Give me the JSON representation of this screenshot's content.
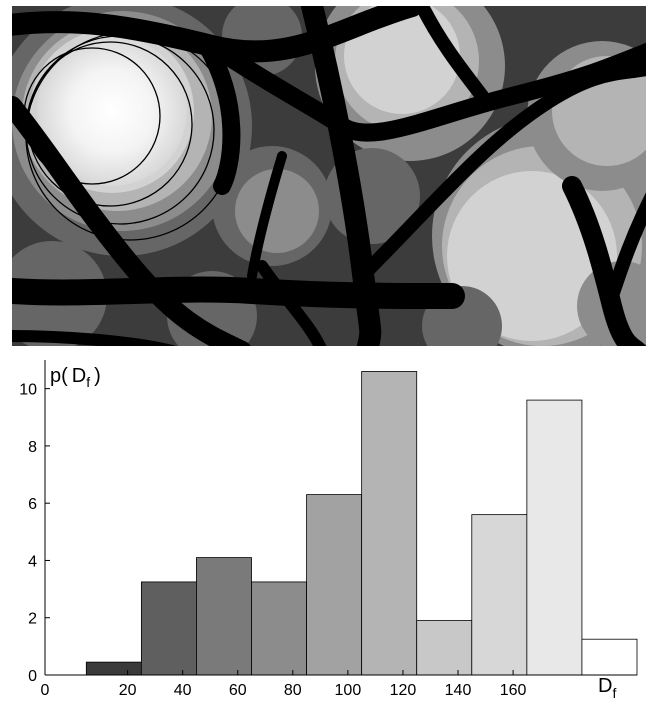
{
  "micrograph": {
    "colors": {
      "fiber": "#000000",
      "pore_level_1": "#3c3c3c",
      "pore_level_2": "#666666",
      "pore_level_3": "#8c8c8c",
      "pore_level_4": "#b4b4b4",
      "pore_level_5": "#d2d2d2",
      "largest_pore": "#ffffff",
      "probe_circle": "#000000"
    }
  },
  "chart_data": {
    "type": "bar",
    "ylabel_main": "p(",
    "ylabel_symbol": "D",
    "ylabel_subscript": "f",
    "ylabel_close": ")",
    "xlabel_symbol": "D",
    "xlabel_subscript": "f",
    "xlim": [
      0,
      175
    ],
    "ylim": [
      0,
      11
    ],
    "xticks": [
      0,
      20,
      40,
      60,
      80,
      100,
      120,
      140,
      160
    ],
    "yticks": [
      0,
      2,
      4,
      6,
      8,
      10
    ],
    "bin_width": 20,
    "bins": [
      {
        "x0": 15,
        "x1": 35,
        "value": 0.45,
        "color": "#3a3a3a"
      },
      {
        "x0": 35,
        "x1": 55,
        "value": 3.25,
        "color": "#5f5f5f"
      },
      {
        "x0": 55,
        "x1": 75,
        "value": 4.1,
        "color": "#7a7a7a"
      },
      {
        "x0": 75,
        "x1": 95,
        "value": 3.25,
        "color": "#8c8c8c"
      },
      {
        "x0": 95,
        "x1": 115,
        "value": 6.3,
        "color": "#a2a2a2"
      },
      {
        "x0": 115,
        "x1": 135,
        "value": 10.6,
        "color": "#b4b4b4"
      },
      {
        "x0": 135,
        "x1": 155,
        "value": 1.9,
        "color": "#c8c8c8"
      },
      {
        "x0": 155,
        "x1": 175,
        "value": 5.6,
        "color": "#d7d7d7"
      },
      {
        "x0": 175,
        "x1": 195,
        "value": 9.6,
        "color": "#e8e8e8"
      },
      {
        "x0": 195,
        "x1": 215,
        "value": 1.25,
        "color": "#ffffff"
      }
    ]
  }
}
